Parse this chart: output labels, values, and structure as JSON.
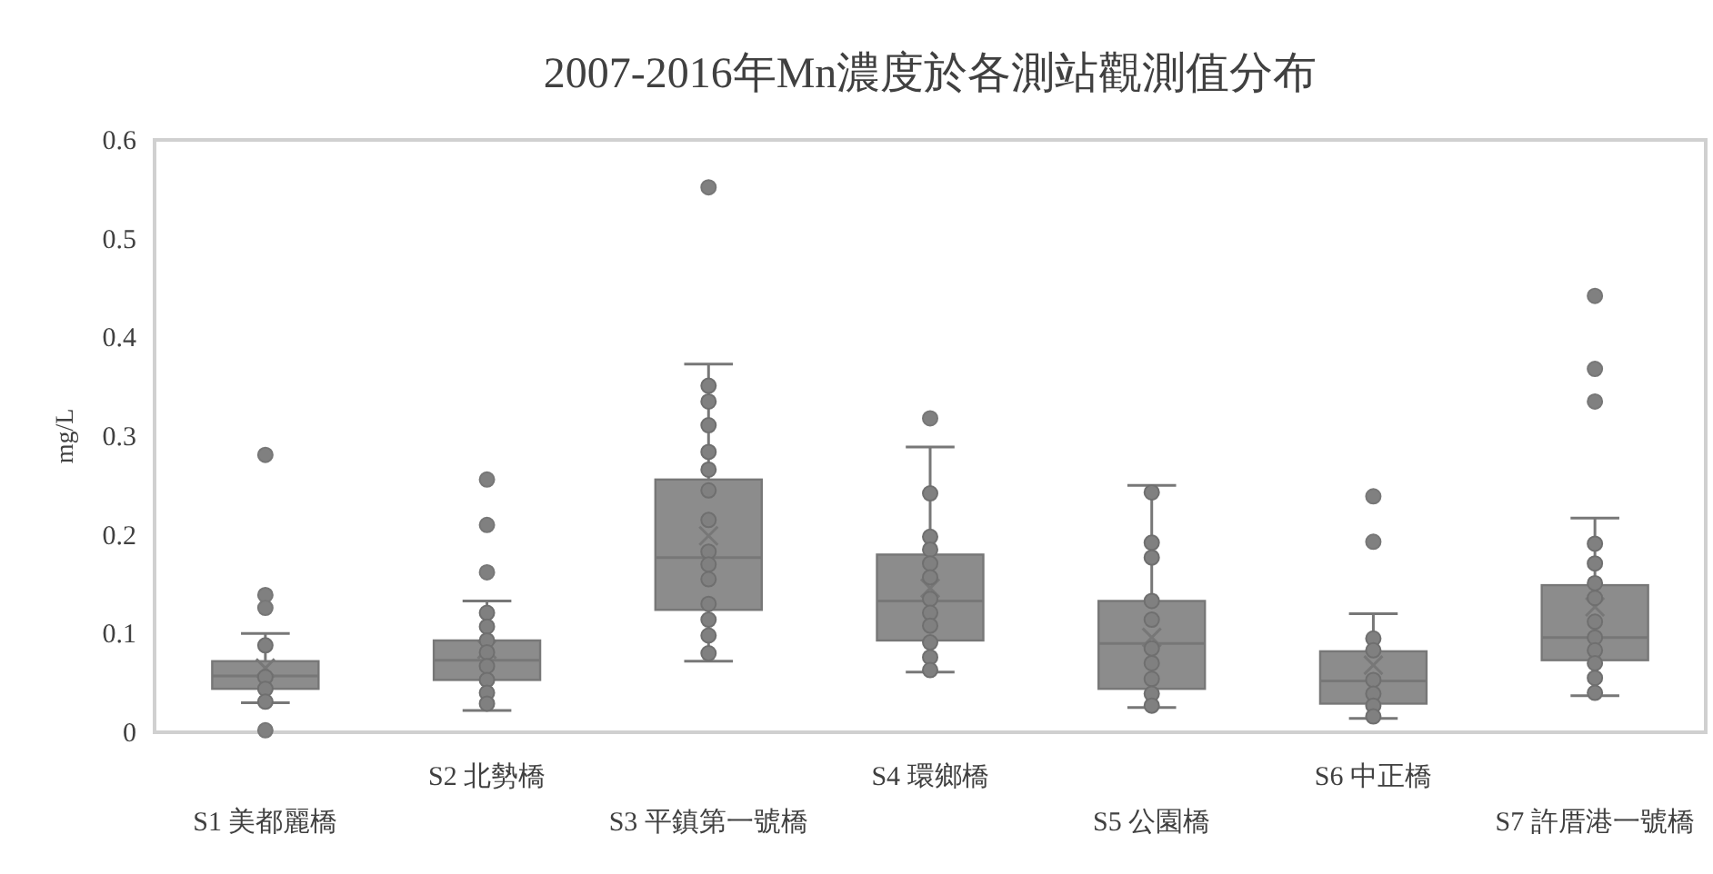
{
  "chart_data": {
    "type": "box",
    "title": "2007-2016年Mn濃度於各測站觀測值分布",
    "ylabel": "mg/L",
    "categories": [
      "S1 美都麗橋",
      "S2 北勢橋",
      "S3 平鎮第一號橋",
      "S4 環鄉橋",
      "S5 公園橋",
      "S6 中正橋",
      "S7 許厝港一號橋"
    ],
    "ylim": [
      0,
      0.6
    ],
    "yticks": [
      0,
      0.1,
      0.2,
      0.3,
      0.4,
      0.5,
      0.6
    ],
    "grid": false,
    "series": [
      {
        "type": "box",
        "color": "#8c8c8c",
        "boxes": [
          {
            "low": 0.03,
            "q1": 0.044,
            "median": 0.057,
            "q3": 0.072,
            "high": 0.1,
            "mean": 0.065,
            "outliers": [
              0.281,
              0.139,
              0.126,
              0.002
            ]
          },
          {
            "low": 0.022,
            "q1": 0.053,
            "median": 0.073,
            "q3": 0.093,
            "high": 0.133,
            "mean": 0.084,
            "outliers": [
              0.256,
              0.21,
              0.162
            ]
          },
          {
            "low": 0.072,
            "q1": 0.124,
            "median": 0.177,
            "q3": 0.256,
            "high": 0.373,
            "mean": 0.199,
            "outliers": [
              0.552
            ]
          },
          {
            "low": 0.061,
            "q1": 0.093,
            "median": 0.133,
            "q3": 0.18,
            "high": 0.289,
            "mean": 0.146,
            "outliers": [
              0.318
            ]
          },
          {
            "low": 0.025,
            "q1": 0.044,
            "median": 0.09,
            "q3": 0.133,
            "high": 0.25,
            "mean": 0.096
          },
          {
            "low": 0.014,
            "q1": 0.029,
            "median": 0.052,
            "q3": 0.082,
            "high": 0.12,
            "mean": 0.068,
            "outliers": [
              0.239,
              0.193
            ]
          },
          {
            "low": 0.037,
            "q1": 0.073,
            "median": 0.096,
            "q3": 0.149,
            "high": 0.217,
            "mean": 0.127,
            "outliers": [
              0.442,
              0.368,
              0.335
            ]
          }
        ]
      },
      {
        "type": "scatter",
        "color": "#808080",
        "marker": "circle",
        "x": [
          "S1 美都麗橋",
          "S1 美都麗橋",
          "S1 美都麗橋",
          "S1 美都麗橋",
          "S2 北勢橋",
          "S2 北勢橋",
          "S2 北勢橋",
          "S2 北勢橋",
          "S2 北勢橋",
          "S2 北勢橋",
          "S2 北勢橋",
          "S2 北勢橋",
          "S3 平鎮第一號橋",
          "S3 平鎮第一號橋",
          "S3 平鎮第一號橋",
          "S3 平鎮第一號橋",
          "S3 平鎮第一號橋",
          "S3 平鎮第一號橋",
          "S3 平鎮第一號橋",
          "S3 平鎮第一號橋",
          "S3 平鎮第一號橋",
          "S3 平鎮第一號橋",
          "S3 平鎮第一號橋",
          "S3 平鎮第一號橋",
          "S3 平鎮第一號橋",
          "S3 平鎮第一號橋",
          "S4 環鄉橋",
          "S4 環鄉橋",
          "S4 環鄉橋",
          "S4 環鄉橋",
          "S4 環鄉橋",
          "S4 環鄉橋",
          "S4 環鄉橋",
          "S4 環鄉橋",
          "S4 環鄉橋",
          "S4 環鄉橋",
          "S4 環鄉橋",
          "S5 公園橋",
          "S5 公園橋",
          "S5 公園橋",
          "S5 公園橋",
          "S5 公園橋",
          "S5 公園橋",
          "S5 公園橋",
          "S5 公園橋",
          "S5 公園橋",
          "S5 公園橋",
          "S6 中正橋",
          "S6 中正橋",
          "S6 中正橋",
          "S6 中正橋",
          "S6 中正橋",
          "S6 中正橋",
          "S7 許厝港一號橋",
          "S7 許厝港一號橋",
          "S7 許厝港一號橋",
          "S7 許厝港一號橋",
          "S7 許厝港一號橋",
          "S7 許厝港一號橋",
          "S7 許厝港一號橋",
          "S7 許厝港一號橋",
          "S7 許厝港一號橋",
          "S7 許厝港一號橋"
        ],
        "values": [
          0.088,
          0.056,
          0.044,
          0.031,
          0.121,
          0.107,
          0.093,
          0.081,
          0.067,
          0.053,
          0.04,
          0.029,
          0.351,
          0.335,
          0.311,
          0.284,
          0.266,
          0.245,
          0.215,
          0.183,
          0.17,
          0.155,
          0.13,
          0.114,
          0.098,
          0.08,
          0.242,
          0.198,
          0.185,
          0.171,
          0.157,
          0.135,
          0.121,
          0.108,
          0.091,
          0.076,
          0.063,
          0.243,
          0.192,
          0.177,
          0.133,
          0.114,
          0.085,
          0.07,
          0.054,
          0.039,
          0.027,
          0.095,
          0.083,
          0.053,
          0.039,
          0.027,
          0.016,
          0.191,
          0.171,
          0.151,
          0.136,
          0.112,
          0.096,
          0.083,
          0.07,
          0.055,
          0.04
        ]
      }
    ]
  }
}
